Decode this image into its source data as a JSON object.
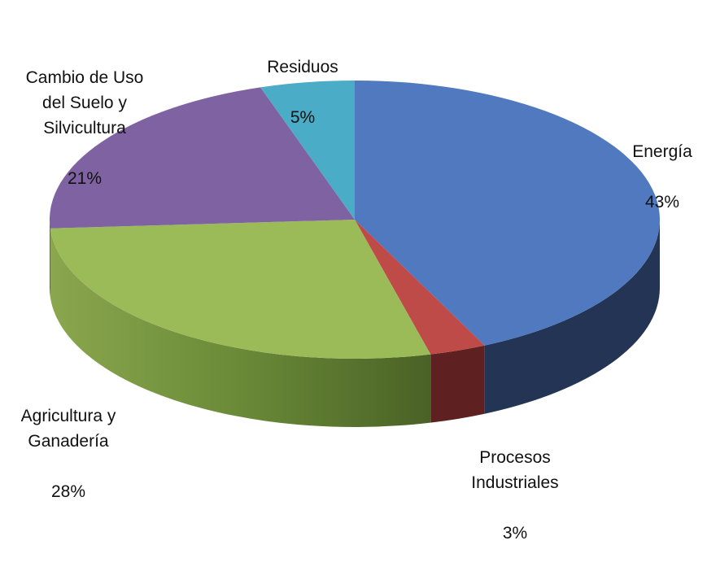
{
  "chart_data": {
    "type": "pie",
    "style": "3d-tilted",
    "slices": [
      {
        "name": "Energía",
        "value": 43,
        "label": "43%",
        "color": "#5079bf",
        "side_color": "#233454"
      },
      {
        "name": "Procesos\nIndustriales",
        "value": 3,
        "label": "3%",
        "color": "#be4b48",
        "side_color": "#5e2020"
      },
      {
        "name": "Agricultura y\nGanadería",
        "value": 28,
        "label": "28%",
        "color": "#9bbb59",
        "side_color": "#6e8e3a"
      },
      {
        "name": "Cambio de Uso\ndel Suelo y\nSilvicultura",
        "value": 21,
        "label": "21%",
        "color": "#7f62a1",
        "side_color": "#4b3a63"
      },
      {
        "name": "Residuos",
        "value": 5,
        "label": "5%",
        "color": "#4aacc6",
        "side_color": "#2a6677"
      }
    ]
  }
}
